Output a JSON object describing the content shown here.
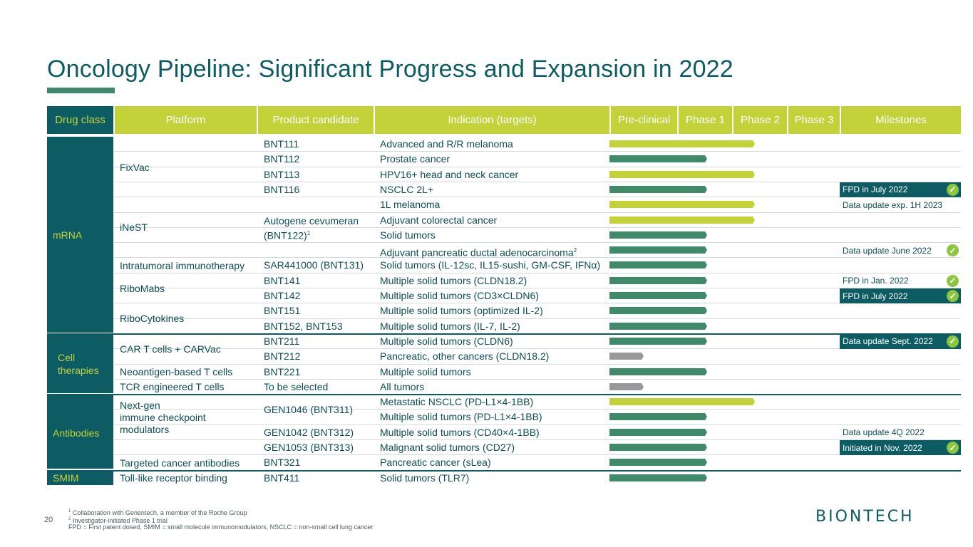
{
  "title": "Oncology Pipeline: Significant Progress and Expansion in 2022",
  "headers": {
    "drug_class": "Drug class",
    "platform": "Platform",
    "product": "Product candidate",
    "indication": "Indication (targets)",
    "preclinical": "Pre-clinical",
    "phase1": "Phase 1",
    "phase2": "Phase 2",
    "phase3": "Phase 3",
    "milestones": "Milestones"
  },
  "drug_classes": [
    "mRNA",
    "Cell therapies",
    "Antibodies",
    "SMIM"
  ],
  "platforms": [
    "FixVac",
    "iNeST",
    "Intratumoral immunotherapy",
    "RiboMabs",
    "RiboCytokines",
    "CAR T cells + CARVac",
    "Neoantigen-based T cells",
    "TCR engineered T cells",
    "Next-gen immune checkpoint modulators",
    "Targeted cancer antibodies",
    "Toll-like receptor binding"
  ],
  "products": [
    "BNT111",
    "BNT112",
    "BNT113",
    "BNT116",
    "Autogene cevumeran (BNT122)",
    "SAR441000 (BNT131)",
    "BNT141",
    "BNT142",
    "BNT151",
    "BNT152, BNT153",
    "BNT211",
    "BNT212",
    "BNT221",
    "To be selected",
    "GEN1046 (BNT311)",
    "GEN1042 (BNT312)",
    "GEN1053 (BNT313)",
    "BNT321",
    "BNT411"
  ],
  "product_superscript": "1",
  "indications": [
    "Advanced and R/R melanoma",
    "Prostate cancer",
    "HPV16+ head and neck cancer",
    "NSCLC 2L+",
    "1L melanoma",
    "Adjuvant colorectal cancer",
    "Solid tumors",
    "Adjuvant pancreatic ductal adenocarcinoma",
    "Solid tumors (IL-12sc, IL15-sushi, GM-CSF, IFNα)",
    "Multiple solid tumors (CLDN18.2)",
    "Multiple solid tumors (CD3×CLDN6)",
    "Multiple solid tumors (optimized IL-2)",
    "Multiple solid tumors (IL-7, IL-2)",
    "Multiple solid tumors (CLDN6)",
    "Pancreatic, other cancers (CLDN18.2)",
    "Multiple solid tumors",
    "All tumors",
    "Metastatic NSCLC (PD-L1×4-1BB)",
    "Multiple solid tumors (PD-L1×4-1BB)",
    "Multiple solid tumors (CD40×4-1BB)",
    "Malignant solid tumors (CD27)",
    "Pancreatic cancer (sLea)",
    "Solid tumors (TLR7)"
  ],
  "indication_superscript": "2",
  "phase_bars": [
    {
      "phase": "Phase 2",
      "color": "#c4d23a"
    },
    {
      "phase": "Phase 1",
      "color": "#3e8a6b"
    },
    {
      "phase": "Phase 2",
      "color": "#c4d23a"
    },
    {
      "phase": "Phase 1",
      "color": "#3e8a6b"
    },
    {
      "phase": "Phase 2",
      "color": "#c4d23a"
    },
    {
      "phase": "Phase 2",
      "color": "#c4d23a"
    },
    {
      "phase": "Phase 1",
      "color": "#3e8a6b"
    },
    {
      "phase": "Phase 1",
      "color": "#3e8a6b"
    },
    {
      "phase": "Phase 1",
      "color": "#3e8a6b"
    },
    {
      "phase": "Phase 1",
      "color": "#3e8a6b"
    },
    {
      "phase": "Phase 1",
      "color": "#3e8a6b"
    },
    {
      "phase": "Phase 1",
      "color": "#3e8a6b"
    },
    {
      "phase": "Phase 1",
      "color": "#3e8a6b"
    },
    {
      "phase": "Phase 1",
      "color": "#3e8a6b"
    },
    {
      "phase": "Pre-clinical",
      "color": "#999999"
    },
    {
      "phase": "Phase 1",
      "color": "#3e8a6b"
    },
    {
      "phase": "Pre-clinical",
      "color": "#999999"
    },
    {
      "phase": "Phase 2",
      "color": "#c4d23a"
    },
    {
      "phase": "Phase 1",
      "color": "#3e8a6b"
    },
    {
      "phase": "Phase 1",
      "color": "#3e8a6b"
    },
    {
      "phase": "Phase 1",
      "color": "#3e8a6b"
    },
    {
      "phase": "Phase 1",
      "color": "#3e8a6b"
    },
    {
      "phase": "Phase 1",
      "color": "#3e8a6b"
    }
  ],
  "milestones": [
    {
      "text": "FPD in July 2022",
      "check": true,
      "highlight": true
    },
    {
      "text": "Data update exp. 1H 2023",
      "check": false,
      "highlight": false
    },
    {
      "text": "Data update June 2022",
      "check": true,
      "highlight": false
    },
    {
      "text": "FPD in Jan. 2022",
      "check": true,
      "highlight": false
    },
    {
      "text": "FPD in July 2022",
      "check": true,
      "highlight": true
    },
    {
      "text": "Data update Sept. 2022",
      "check": true,
      "highlight": true
    },
    {
      "text": "Data update 4Q 2022",
      "check": false,
      "highlight": false
    },
    {
      "text": "Initiated in Nov. 2022",
      "check": true,
      "highlight": true
    }
  ],
  "check_glyph": "✓",
  "footnotes": [
    {
      "mark": "1",
      "text": "Collaboration with Genentech, a member of the Roche Group"
    },
    {
      "mark": "2",
      "text": "Investigator-initiated Phase 1 trial"
    },
    {
      "mark": "",
      "text": "FPD = First patent dosed, SMIM = small molecule immunomodulators, NSCLC = non-small cell lung cancer"
    }
  ],
  "page_number": "20",
  "logo": {
    "text": "BIONTECH",
    "accent_color": "#8cc63f",
    "brand_color": "#0d5c63"
  },
  "colors": {
    "dark_teal": "#0d5c63",
    "lime": "#c4d23a",
    "green": "#3e8a6b",
    "grey": "#999999"
  }
}
